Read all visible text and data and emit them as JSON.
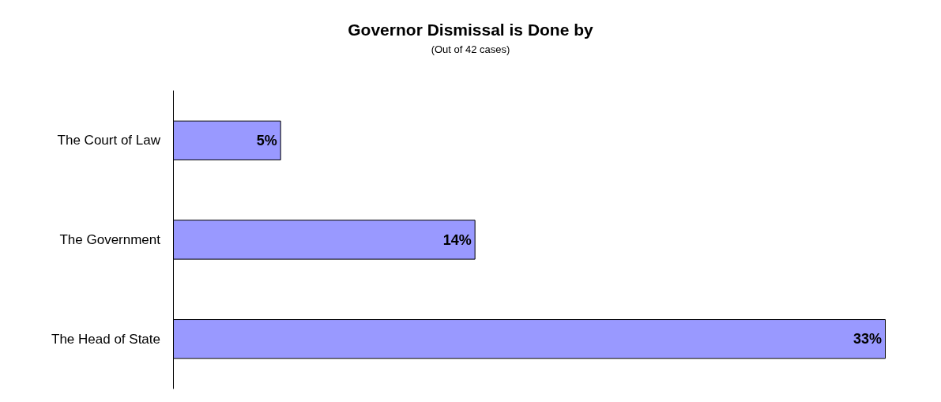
{
  "chart_data": {
    "type": "bar",
    "orientation": "horizontal",
    "title": "Governor Dismissal is Done by",
    "subtitle": "(Out of 42 cases)",
    "categories": [
      "The Court of Law",
      "The Government",
      "The Head of State"
    ],
    "values": [
      5,
      14,
      33
    ],
    "value_labels": [
      "5%",
      "14%",
      "33%"
    ],
    "color": "#9999ff"
  }
}
